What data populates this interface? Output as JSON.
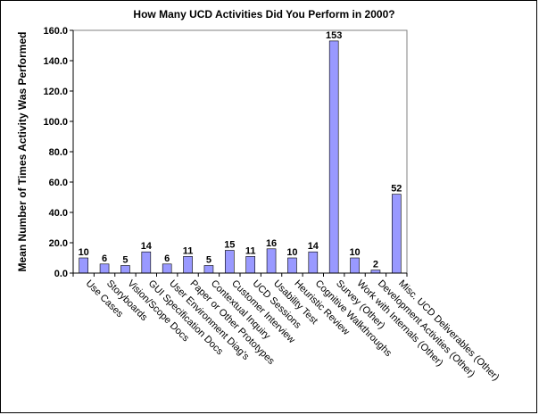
{
  "chart_data": {
    "type": "bar",
    "title": "How Many UCD Activities Did You Perform in 2000?",
    "xlabel": "",
    "ylabel": "Mean Number of Times Activity Was Performed",
    "ylim": [
      0,
      160
    ],
    "yticks": [
      "0.0",
      "20.0",
      "40.0",
      "60.0",
      "80.0",
      "100.0",
      "120.0",
      "140.0",
      "160.0"
    ],
    "grid": false,
    "legend": "none",
    "bar_color": "#9999ff",
    "categories": [
      "Use Cases",
      "Storyboards",
      "Vision/Scope Docs",
      "GUI Specification Docs",
      "User Environment Diag's",
      "Paper or Other Prototypes",
      "Contextual Inquiry",
      "Customer Interview",
      "UCD Sessions",
      "Usability Test",
      "Heuristic Review",
      "Cognitive Walkthroughs",
      "Survey (Other)",
      "Work with Internals (Other)",
      "Development Activities (Other)",
      "Misc. UCD Deliverables (Other)"
    ],
    "values": [
      10,
      6,
      5,
      14,
      6,
      11,
      5,
      15,
      11,
      16,
      10,
      14,
      153,
      10,
      2,
      52
    ],
    "value_labels": [
      "10",
      "6",
      "5",
      "14",
      "6",
      "11",
      "5",
      "15",
      "11",
      "16",
      "10",
      "14",
      "153",
      "10",
      "2",
      "52"
    ]
  }
}
